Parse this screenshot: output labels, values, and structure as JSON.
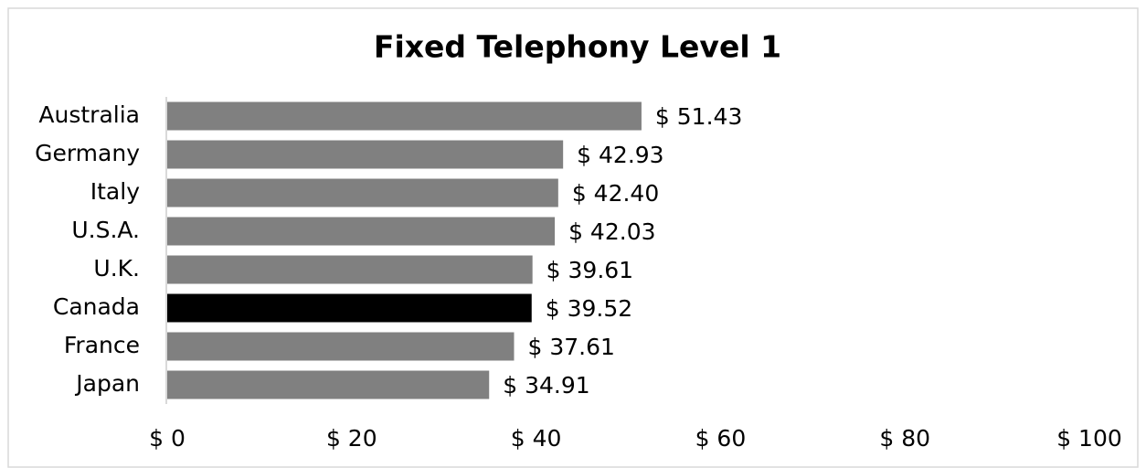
{
  "chart_data": {
    "type": "hbar",
    "title": "Fixed Telephony Level 1",
    "categories": [
      "Australia",
      "Germany",
      "Italy",
      "U.S.A.",
      "U.K.",
      "Canada",
      "France",
      "Japan"
    ],
    "values": [
      51.43,
      42.93,
      42.4,
      42.03,
      39.61,
      39.52,
      37.61,
      34.91
    ],
    "value_labels": [
      "$ 51.43",
      "$ 42.93",
      "$ 42.40",
      "$ 42.03",
      "$ 39.61",
      "$ 39.52",
      "$ 37.61",
      "$ 34.91"
    ],
    "colors": [
      "#808080",
      "#808080",
      "#808080",
      "#808080",
      "#808080",
      "#000000",
      "#808080",
      "#808080"
    ],
    "xlim": [
      0,
      100
    ],
    "xticks": [
      {
        "value": 0,
        "label": "$ 0"
      },
      {
        "value": 20,
        "label": "$ 20"
      },
      {
        "value": 40,
        "label": "$ 40"
      },
      {
        "value": 60,
        "label": "$ 60"
      },
      {
        "value": 80,
        "label": "$ 80"
      },
      {
        "value": 100,
        "label": "$ 100"
      }
    ],
    "grid": false
  }
}
